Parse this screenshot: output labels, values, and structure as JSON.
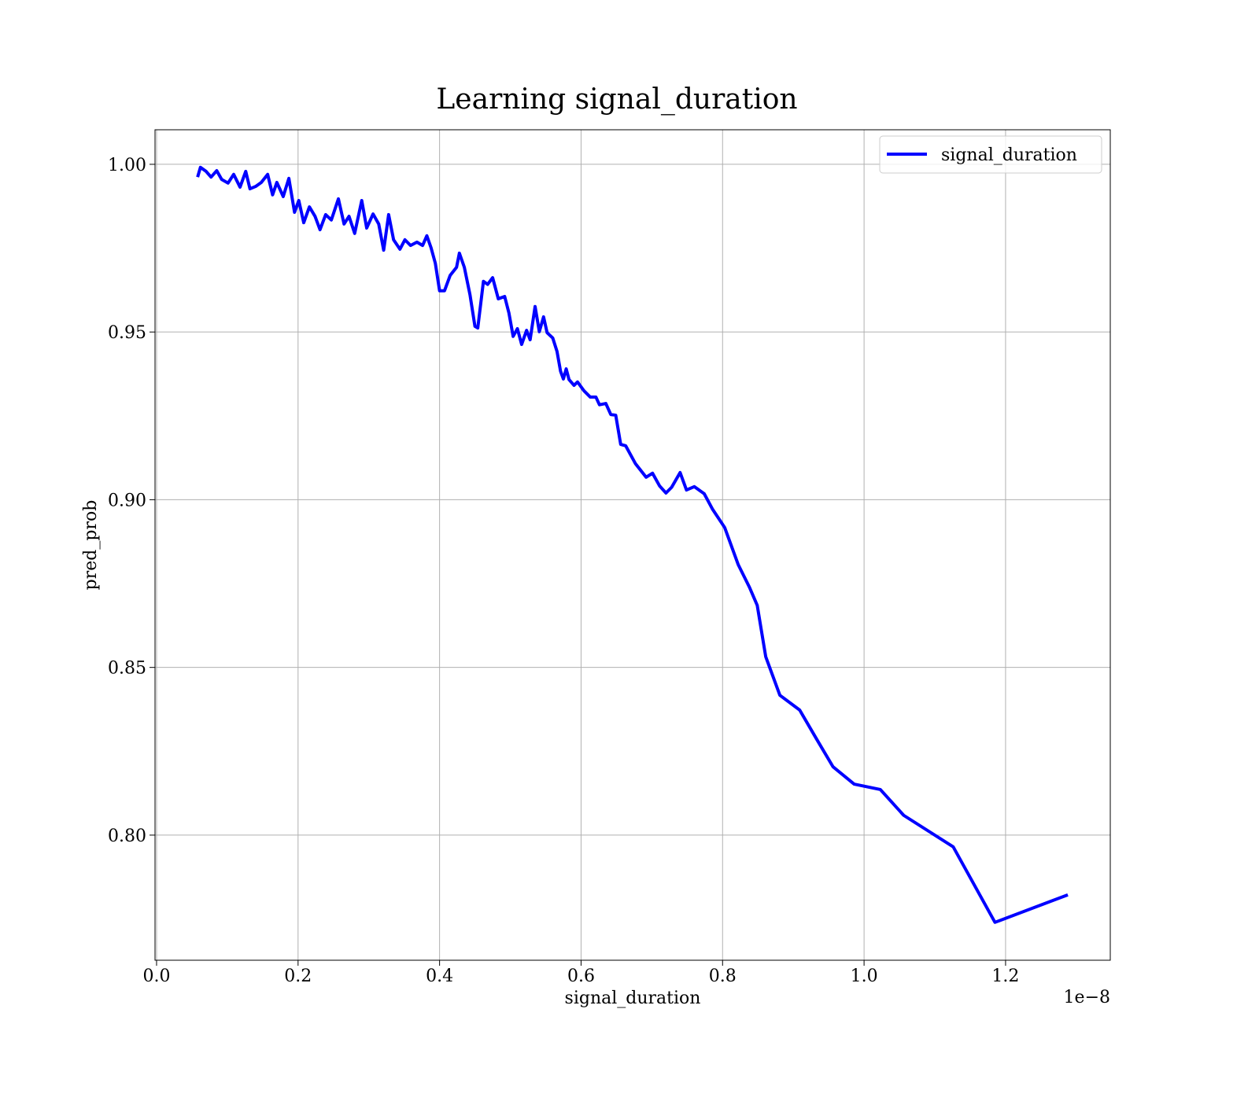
{
  "chart_data": {
    "type": "line",
    "title": "Learning signal_duration",
    "xlabel": "signal_duration",
    "ylabel": "pred_prob",
    "x_offset_label": "1e−8",
    "x": [
      0.058,
      0.062,
      0.07,
      0.077,
      0.085,
      0.092,
      0.101,
      0.109,
      0.118,
      0.126,
      0.132,
      0.14,
      0.148,
      0.157,
      0.164,
      0.17,
      0.179,
      0.187,
      0.195,
      0.201,
      0.208,
      0.216,
      0.224,
      0.231,
      0.239,
      0.247,
      0.257,
      0.265,
      0.272,
      0.28,
      0.29,
      0.297,
      0.306,
      0.314,
      0.321,
      0.328,
      0.335,
      0.344,
      0.351,
      0.359,
      0.368,
      0.376,
      0.382,
      0.388,
      0.394,
      0.4,
      0.407,
      0.415,
      0.424,
      0.428,
      0.435,
      0.443,
      0.45,
      0.454,
      0.462,
      0.468,
      0.475,
      0.483,
      0.492,
      0.498,
      0.504,
      0.51,
      0.516,
      0.523,
      0.528,
      0.535,
      0.541,
      0.547,
      0.552,
      0.56,
      0.566,
      0.571,
      0.575,
      0.579,
      0.583,
      0.59,
      0.595,
      0.604,
      0.613,
      0.621,
      0.626,
      0.635,
      0.642,
      0.649,
      0.656,
      0.663,
      0.677,
      0.692,
      0.701,
      0.711,
      0.72,
      0.728,
      0.74,
      0.749,
      0.76,
      0.774,
      0.786,
      0.803,
      0.822,
      0.838,
      0.849,
      0.861,
      0.881,
      0.909,
      0.933,
      0.956,
      0.986,
      1.023,
      1.056,
      1.126,
      1.185,
      1.288
    ],
    "series": [
      {
        "name": "signal_duration",
        "color": "#0000ff",
        "values": [
          0.9962,
          0.9991,
          0.9979,
          0.9962,
          0.9981,
          0.9955,
          0.9944,
          0.997,
          0.9932,
          0.9979,
          0.9927,
          0.9934,
          0.9946,
          0.997,
          0.9909,
          0.9946,
          0.9904,
          0.9958,
          0.9857,
          0.9892,
          0.9826,
          0.9873,
          0.9845,
          0.9805,
          0.985,
          0.9834,
          0.9897,
          0.9822,
          0.9845,
          0.9794,
          0.9892,
          0.981,
          0.9852,
          0.9822,
          0.9744,
          0.985,
          0.9775,
          0.9747,
          0.9775,
          0.9758,
          0.9768,
          0.9758,
          0.9787,
          0.9751,
          0.9705,
          0.9623,
          0.9623,
          0.9669,
          0.9693,
          0.9735,
          0.9693,
          0.9611,
          0.9517,
          0.9512,
          0.9651,
          0.9642,
          0.9662,
          0.9599,
          0.9606,
          0.9557,
          0.9487,
          0.951,
          0.9463,
          0.9505,
          0.9477,
          0.9576,
          0.9501,
          0.9545,
          0.9498,
          0.9482,
          0.9442,
          0.9383,
          0.936,
          0.939,
          0.9358,
          0.9341,
          0.9351,
          0.9325,
          0.9306,
          0.9306,
          0.9283,
          0.9287,
          0.9254,
          0.9252,
          0.9165,
          0.9161,
          0.9107,
          0.9067,
          0.9079,
          0.9041,
          0.902,
          0.9037,
          0.9081,
          0.9029,
          0.9039,
          0.9018,
          0.8971,
          0.8917,
          0.8807,
          0.8739,
          0.8685,
          0.8532,
          0.8417,
          0.8373,
          0.8286,
          0.8204,
          0.8152,
          0.8136,
          0.8059,
          0.7965,
          0.774,
          0.7822
        ]
      }
    ],
    "xlim": [
      -0.0022,
      1.348
    ],
    "ylim": [
      0.7627,
      1.0103
    ],
    "xticks": [
      {
        "value": 0,
        "label": "0.0"
      },
      0.2,
      0.4,
      0.6,
      0.8,
      {
        "value": 1,
        "label": "1.0"
      },
      1.2
    ],
    "yticks": [
      {
        "value": 0.8,
        "label": "0.80"
      },
      0.85,
      {
        "value": 0.9,
        "label": "0.90"
      },
      0.95,
      {
        "value": 1,
        "label": "1.00"
      }
    ],
    "grid": true,
    "legend": "upper right"
  }
}
